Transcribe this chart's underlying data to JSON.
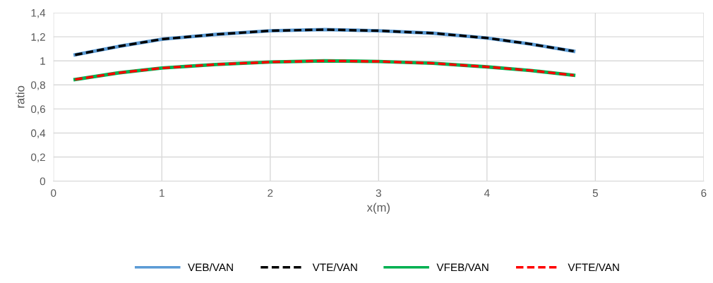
{
  "chart_data": {
    "type": "line",
    "xlabel": "x(m)",
    "ylabel": "ratio",
    "xlim": [
      0,
      6
    ],
    "xticks": [
      0,
      1,
      2,
      3,
      4,
      5,
      6
    ],
    "ylim": [
      0,
      1.4
    ],
    "yticks": [
      {
        "value": 0,
        "label": "0"
      },
      {
        "value": 0.2,
        "label": "0,2"
      },
      {
        "value": 0.4,
        "label": "0,4"
      },
      {
        "value": 0.6,
        "label": "0,6"
      },
      {
        "value": 0.8,
        "label": "0,8"
      },
      {
        "value": 1,
        "label": "1"
      },
      {
        "value": 1.2,
        "label": "1,2"
      },
      {
        "value": 1.4,
        "label": "1,4"
      }
    ],
    "grid": true,
    "legend": "bottom",
    "marker": "none",
    "x": [
      0.2,
      0.6,
      1,
      1.5,
      2,
      2.5,
      3,
      3.5,
      4,
      4.4,
      4.8
    ],
    "series": [
      {
        "name": "VEB/VAN",
        "color": "#5b9bd5",
        "line_style": "solid",
        "values": [
          1.05,
          1.12,
          1.18,
          1.22,
          1.25,
          1.26,
          1.25,
          1.23,
          1.19,
          1.14,
          1.08
        ]
      },
      {
        "name": "VTE/VAN",
        "color": "#000000",
        "line_style": "dashed",
        "values": [
          1.05,
          1.12,
          1.18,
          1.22,
          1.25,
          1.26,
          1.25,
          1.23,
          1.19,
          1.14,
          1.08
        ]
      },
      {
        "name": "VFEB/VAN",
        "color": "#00b050",
        "line_style": "solid",
        "values": [
          0.845,
          0.9,
          0.94,
          0.97,
          0.99,
          1.0,
          0.995,
          0.98,
          0.95,
          0.92,
          0.88
        ]
      },
      {
        "name": "VFTE/VAN",
        "color": "#ff0000",
        "line_style": "dashed",
        "values": [
          0.845,
          0.9,
          0.94,
          0.97,
          0.99,
          1.0,
          0.995,
          0.98,
          0.95,
          0.92,
          0.88
        ]
      }
    ]
  }
}
